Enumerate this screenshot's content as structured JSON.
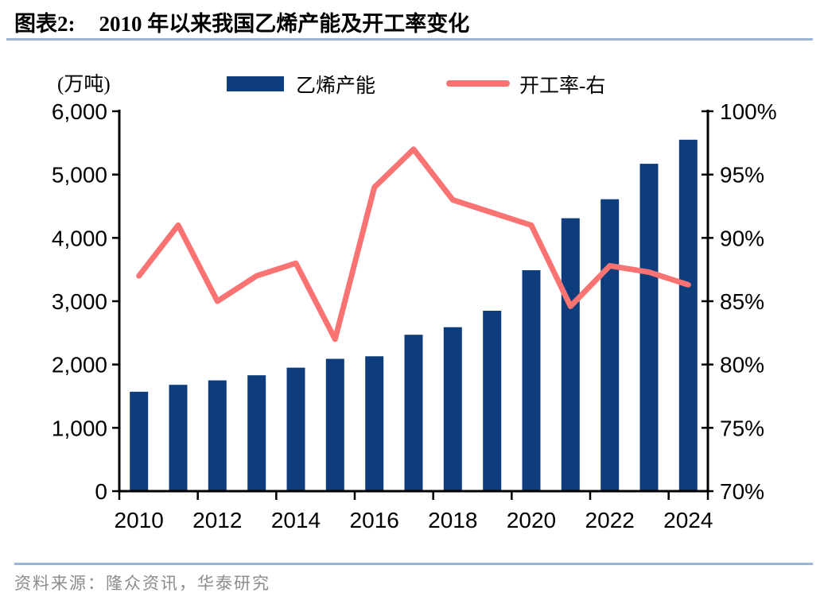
{
  "title": {
    "label": "图表2:",
    "text": "2010 年以来我国乙烯产能及开工率变化"
  },
  "footer": {
    "source": "资料来源：隆众资讯，华泰研究"
  },
  "colors": {
    "bar": "#0d3d7c",
    "line": "#f97373",
    "divider": "#9db3d3",
    "source_text": "#8c8c8c"
  },
  "chart_data": {
    "type": "bar",
    "subtype": "bar+line combo, dual axis",
    "title": "2010 年以来我国乙烯产能及开工率变化",
    "unit_label": "(万吨)",
    "categories": [
      2010,
      2011,
      2012,
      2013,
      2014,
      2015,
      2016,
      2017,
      2018,
      2019,
      2020,
      2021,
      2022,
      2023,
      2024
    ],
    "x_tick_labels": [
      "2010",
      "2012",
      "2014",
      "2016",
      "2018",
      "2020",
      "2022",
      "2024"
    ],
    "series": [
      {
        "name": "乙烯产能",
        "type": "bar",
        "axis": "left",
        "color": "#0d3d7c",
        "values": [
          1570,
          1680,
          1750,
          1830,
          1950,
          2090,
          2130,
          2470,
          2590,
          2850,
          3490,
          4310,
          4610,
          5170,
          5550
        ]
      },
      {
        "name": "开工率-右",
        "type": "line",
        "axis": "right",
        "color": "#f97373",
        "values": [
          87,
          91,
          85,
          87,
          88,
          82,
          94,
          97,
          93,
          92,
          91,
          84.6,
          87.8,
          87.3,
          86.3
        ]
      }
    ],
    "left_axis": {
      "min": 0,
      "max": 6000,
      "step": 1000,
      "tick_labels": [
        "0",
        "1,000",
        "2,000",
        "3,000",
        "4,000",
        "5,000",
        "6,000"
      ]
    },
    "right_axis": {
      "min": 70,
      "max": 100,
      "step": 5,
      "tick_labels": [
        "70%",
        "75%",
        "80%",
        "85%",
        "90%",
        "95%",
        "100%"
      ]
    },
    "legend": {
      "position": "top",
      "entries": [
        "乙烯产能",
        "开工率-右"
      ]
    },
    "grid": false
  }
}
